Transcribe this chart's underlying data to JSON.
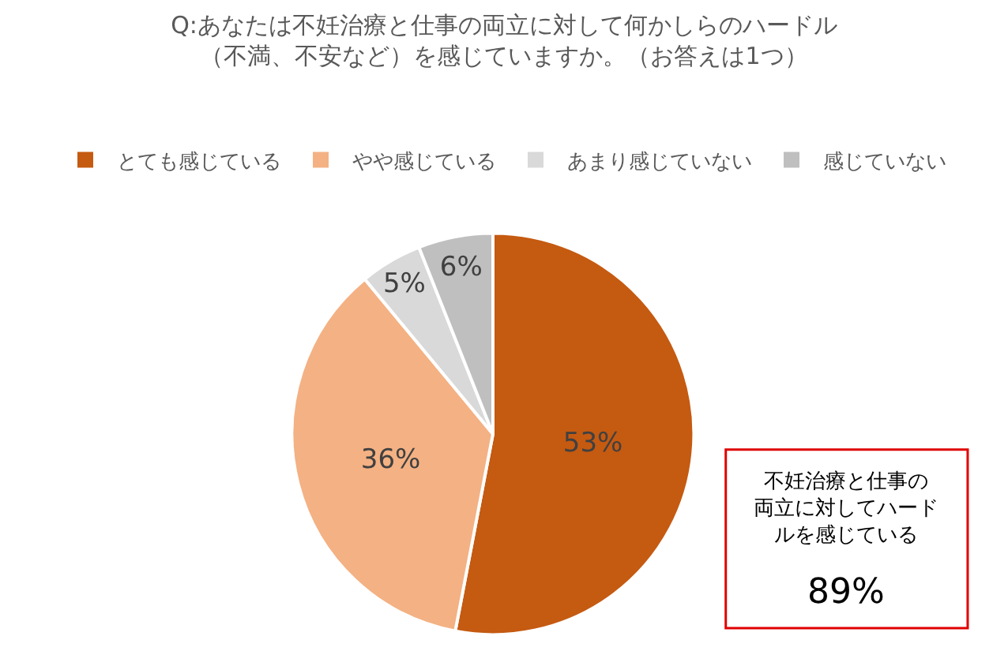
{
  "chart_data": {
    "type": "pie",
    "title": "Q:あなたは不妊治療と仕事の両立に対して何かしらのハードル（不満、不安など）を感じていますか。（お答えは1つ）",
    "categories": [
      "とても感じている",
      "やや感じている",
      "あまり感じていない",
      "感じていない"
    ],
    "values": [
      53,
      36,
      5,
      6
    ],
    "value_labels": [
      "53%",
      "36%",
      "5%",
      "6%"
    ],
    "colors": [
      "#c55a11",
      "#f4b183",
      "#d9d9d9",
      "#bfbfbf"
    ],
    "legend": "top",
    "annotations": [
      "不妊治療と仕事の両立に対してハードルを感じている",
      "89%"
    ]
  }
}
